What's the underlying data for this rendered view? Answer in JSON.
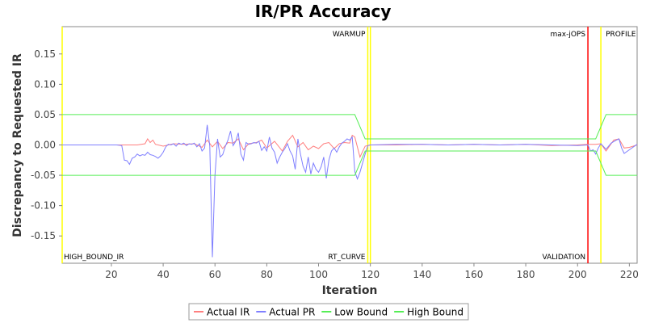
{
  "chart_data": {
    "type": "line",
    "title": "IR/PR Accuracy",
    "xlabel": "Iteration",
    "ylabel": "Discrepancy to Requested IR",
    "xlim": [
      1,
      223
    ],
    "ylim": [
      -0.195,
      0.195
    ],
    "x_ticks": [
      20,
      40,
      60,
      80,
      100,
      120,
      140,
      160,
      180,
      200,
      220
    ],
    "y_ticks": [
      -0.15,
      -0.1,
      -0.05,
      0.0,
      0.05,
      0.1,
      0.15
    ],
    "y_tick_labels": [
      "-0.15",
      "-0.10",
      "-0.05",
      "0.00",
      "0.05",
      "0.10",
      "0.15"
    ],
    "grid": false,
    "legend_position": "bottom",
    "series": [
      {
        "name": "Actual IR",
        "color": "#ff7f7f",
        "points": [
          [
            1,
            0
          ],
          [
            22,
            0
          ],
          [
            25,
            0
          ],
          [
            30,
            0
          ],
          [
            33,
            0.002
          ],
          [
            34,
            0.01
          ],
          [
            35,
            0.004
          ],
          [
            36,
            0.008
          ],
          [
            37,
            0.001
          ],
          [
            40,
            -0.002
          ],
          [
            44,
            0.002
          ],
          [
            48,
            0.001
          ],
          [
            52,
            0.002
          ],
          [
            55,
            -0.004
          ],
          [
            57,
            0.008
          ],
          [
            59,
            -0.003
          ],
          [
            61,
            0.006
          ],
          [
            63,
            -0.006
          ],
          [
            65,
            0.004
          ],
          [
            67,
            0.003
          ],
          [
            69,
            0.01
          ],
          [
            71,
            -0.008
          ],
          [
            73,
            0.002
          ],
          [
            76,
            0.004
          ],
          [
            78,
            0.008
          ],
          [
            80,
            -0.005
          ],
          [
            83,
            0.006
          ],
          [
            86,
            -0.01
          ],
          [
            88,
            0.006
          ],
          [
            90,
            0.016
          ],
          [
            92,
            -0.003
          ],
          [
            94,
            0.004
          ],
          [
            96,
            -0.008
          ],
          [
            98,
            -0.002
          ],
          [
            100,
            -0.006
          ],
          [
            102,
            0.002
          ],
          [
            104,
            0.004
          ],
          [
            106,
            -0.006
          ],
          [
            108,
            0.002
          ],
          [
            110,
            0.004
          ],
          [
            112,
            0.003
          ],
          [
            113,
            0.016
          ],
          [
            114,
            0.013
          ],
          [
            116,
            -0.02
          ],
          [
            118,
            -0.002
          ],
          [
            120,
            0
          ],
          [
            130,
            0
          ],
          [
            140,
            0.001
          ],
          [
            150,
            0
          ],
          [
            160,
            0.001
          ],
          [
            170,
            0
          ],
          [
            180,
            0.001
          ],
          [
            190,
            -0.001
          ],
          [
            200,
            0
          ],
          [
            204,
            0.001
          ],
          [
            207,
            0.001
          ],
          [
            209,
            0.002
          ],
          [
            211,
            -0.01
          ],
          [
            214,
            0.008
          ],
          [
            216,
            0.01
          ],
          [
            218,
            -0.005
          ],
          [
            220,
            -0.004
          ],
          [
            223,
            0
          ]
        ]
      },
      {
        "name": "Actual PR",
        "color": "#7f7fff",
        "points": [
          [
            1,
            0
          ],
          [
            22,
            0
          ],
          [
            24,
            -0.001
          ],
          [
            25,
            -0.025
          ],
          [
            26,
            -0.026
          ],
          [
            27,
            -0.032
          ],
          [
            28,
            -0.022
          ],
          [
            29,
            -0.02
          ],
          [
            30,
            -0.015
          ],
          [
            31,
            -0.018
          ],
          [
            32,
            -0.016
          ],
          [
            33,
            -0.017
          ],
          [
            34,
            -0.012
          ],
          [
            35,
            -0.016
          ],
          [
            36,
            -0.017
          ],
          [
            37,
            -0.019
          ],
          [
            38,
            -0.022
          ],
          [
            39,
            -0.018
          ],
          [
            40,
            -0.012
          ],
          [
            41,
            -0.003
          ],
          [
            42,
            0.001
          ],
          [
            43,
            0.0
          ],
          [
            44,
            0.002
          ],
          [
            45,
            -0.002
          ],
          [
            46,
            0.003
          ],
          [
            47,
            0.001
          ],
          [
            48,
            0.003
          ],
          [
            49,
            -0.001
          ],
          [
            50,
            0.002
          ],
          [
            51,
            0.001
          ],
          [
            52,
            0.003
          ],
          [
            53,
            -0.003
          ],
          [
            54,
            0.002
          ],
          [
            55,
            -0.01
          ],
          [
            56,
            -0.005
          ],
          [
            57,
            0.033
          ],
          [
            58,
            -0.002
          ],
          [
            59,
            -0.185
          ],
          [
            60,
            -0.05
          ],
          [
            61,
            0.01
          ],
          [
            62,
            -0.02
          ],
          [
            63,
            -0.016
          ],
          [
            64,
            -0.002
          ],
          [
            65,
            0.008
          ],
          [
            66,
            0.023
          ],
          [
            67,
            -0.001
          ],
          [
            68,
            0.006
          ],
          [
            69,
            0.02
          ],
          [
            70,
            -0.015
          ],
          [
            71,
            -0.025
          ],
          [
            72,
            0.004
          ],
          [
            73,
            0.001
          ],
          [
            74,
            0.002
          ],
          [
            75,
            0.004
          ],
          [
            76,
            0.003
          ],
          [
            77,
            0.006
          ],
          [
            78,
            -0.009
          ],
          [
            79,
            -0.003
          ],
          [
            80,
            -0.01
          ],
          [
            81,
            0.013
          ],
          [
            82,
            -0.005
          ],
          [
            83,
            -0.012
          ],
          [
            84,
            -0.03
          ],
          [
            85,
            -0.02
          ],
          [
            86,
            -0.012
          ],
          [
            87,
            -0.006
          ],
          [
            88,
            0.002
          ],
          [
            89,
            -0.01
          ],
          [
            90,
            -0.018
          ],
          [
            91,
            -0.04
          ],
          [
            92,
            0.01
          ],
          [
            93,
            -0.015
          ],
          [
            94,
            -0.035
          ],
          [
            95,
            -0.045
          ],
          [
            96,
            -0.02
          ],
          [
            97,
            -0.048
          ],
          [
            98,
            -0.03
          ],
          [
            99,
            -0.04
          ],
          [
            100,
            -0.045
          ],
          [
            101,
            -0.036
          ],
          [
            102,
            -0.02
          ],
          [
            103,
            -0.055
          ],
          [
            104,
            -0.025
          ],
          [
            105,
            -0.01
          ],
          [
            106,
            -0.005
          ],
          [
            107,
            -0.012
          ],
          [
            108,
            -0.003
          ],
          [
            109,
            0.003
          ],
          [
            110,
            0.006
          ],
          [
            111,
            0.01
          ],
          [
            112,
            0.008
          ],
          [
            113,
            0.013
          ],
          [
            114,
            -0.044
          ],
          [
            115,
            -0.056
          ],
          [
            116,
            -0.045
          ],
          [
            117,
            -0.03
          ],
          [
            118,
            -0.015
          ],
          [
            119,
            -0.001
          ],
          [
            120,
            0
          ],
          [
            130,
            0.001
          ],
          [
            140,
            0.001
          ],
          [
            150,
            0
          ],
          [
            160,
            0.001
          ],
          [
            170,
            0
          ],
          [
            180,
            0.001
          ],
          [
            190,
            0
          ],
          [
            200,
            -0.001
          ],
          [
            204,
            0
          ],
          [
            205,
            -0.01
          ],
          [
            206,
            -0.008
          ],
          [
            207,
            -0.015
          ],
          [
            208,
            -0.005
          ],
          [
            209,
            0.002
          ],
          [
            211,
            -0.007
          ],
          [
            213,
            0.003
          ],
          [
            215,
            0.008
          ],
          [
            216,
            0.01
          ],
          [
            217,
            -0.005
          ],
          [
            218,
            -0.014
          ],
          [
            220,
            -0.008
          ],
          [
            223,
            0.001
          ]
        ]
      },
      {
        "name": "Low Bound",
        "color": "#55ee55",
        "points": [
          [
            1,
            -0.05
          ],
          [
            114,
            -0.05
          ],
          [
            118,
            -0.01
          ],
          [
            207,
            -0.01
          ],
          [
            211,
            -0.05
          ],
          [
            223,
            -0.05
          ]
        ]
      },
      {
        "name": "High Bound",
        "color": "#55ee55",
        "points": [
          [
            1,
            0.05
          ],
          [
            114,
            0.05
          ],
          [
            118,
            0.01
          ],
          [
            207,
            0.01
          ],
          [
            211,
            0.05
          ],
          [
            223,
            0.05
          ]
        ]
      }
    ],
    "markers": [
      {
        "x": 1,
        "color": "#ffff00",
        "top_label": "",
        "bottom_label": "HIGH_BOUND_IR"
      },
      {
        "x": 119,
        "color": "#ffff00",
        "top_label": "WARMUP",
        "bottom_label": "RT_CURVE"
      },
      {
        "x": 120,
        "color": "#ffff00",
        "top_label": "",
        "bottom_label": ""
      },
      {
        "x": 204,
        "color": "#ff0000",
        "top_label": "max-jOPS",
        "bottom_label": "VALIDATION"
      },
      {
        "x": 209,
        "color": "#ffff00",
        "top_label": "PROFILE",
        "bottom_label": ""
      }
    ]
  }
}
